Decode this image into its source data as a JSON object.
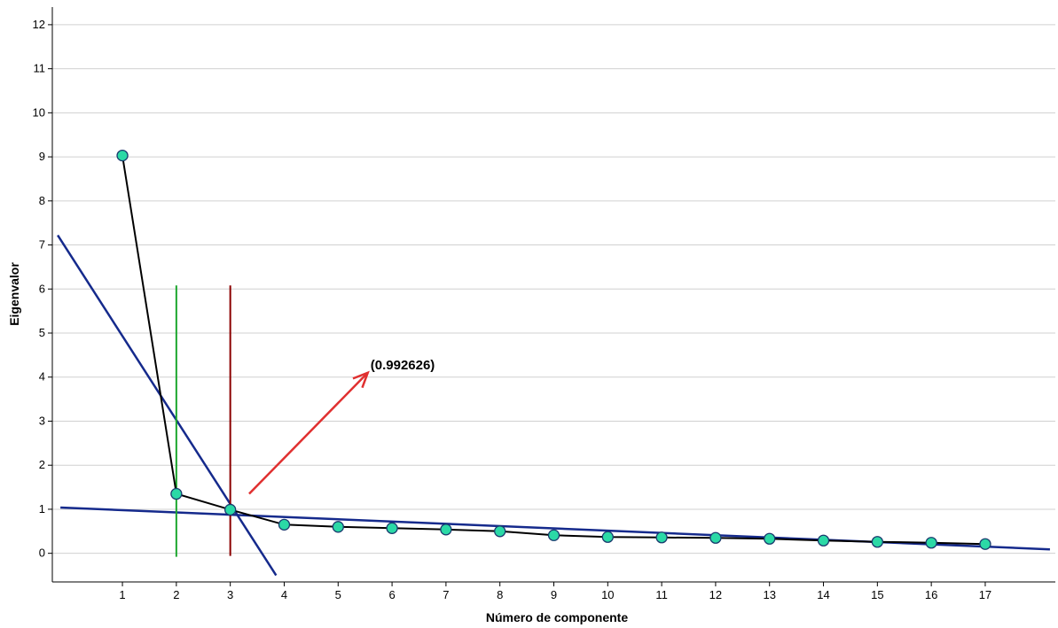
{
  "chart_data": {
    "type": "line",
    "title": "",
    "xlabel": "Número de componente",
    "ylabel": "Eigenvalor",
    "x": [
      1,
      2,
      3,
      4,
      5,
      6,
      7,
      8,
      9,
      10,
      11,
      12,
      13,
      14,
      15,
      16,
      17
    ],
    "series": [
      {
        "values": [
          9.03,
          1.35,
          0.99,
          0.65,
          0.6,
          0.57,
          0.54,
          0.5,
          0.41,
          0.37,
          0.36,
          0.35,
          0.33,
          0.29,
          0.26,
          0.24,
          0.21
        ]
      }
    ],
    "xticks": [
      "1",
      "2",
      "3",
      "4",
      "5",
      "6",
      "7",
      "8",
      "9",
      "10",
      "11",
      "12",
      "13",
      "14",
      "15",
      "16",
      "17"
    ],
    "yticks": [
      "0",
      "1",
      "2",
      "3",
      "4",
      "5",
      "6",
      "7",
      "8",
      "9",
      "10",
      "11",
      "12"
    ],
    "xlim": [
      -0.3,
      18.3
    ],
    "ylim": [
      -0.65,
      12.4
    ],
    "grid": "horizontal",
    "colors": {
      "line": "#000000",
      "marker_fill": "#2bd9a6",
      "marker_stroke": "#1a3a6e",
      "grid": "#d0d0d0",
      "fit_lines": "#152a8c",
      "vline_component_2": "#1ca62e",
      "vline_component_3": "#8b0000",
      "arrow": "#e03030"
    },
    "reference_lines": [
      {
        "kind": "line",
        "from": [
          -0.2,
          7.22
        ],
        "to": [
          3.85,
          -0.5
        ]
      },
      {
        "kind": "line",
        "from": [
          -0.15,
          1.04
        ],
        "to": [
          18.2,
          0.09
        ]
      },
      {
        "kind": "vertical",
        "x": 2,
        "y_range": [
          -0.08,
          6.08
        ]
      },
      {
        "kind": "vertical",
        "x": 3,
        "y_range": [
          -0.06,
          6.08
        ]
      }
    ],
    "annotations": [
      {
        "text": "(0.992626)",
        "x": 5.6,
        "y": 4.28,
        "arrow_from": [
          3.35,
          1.35
        ],
        "arrow_to": [
          5.55,
          4.1
        ]
      }
    ]
  }
}
